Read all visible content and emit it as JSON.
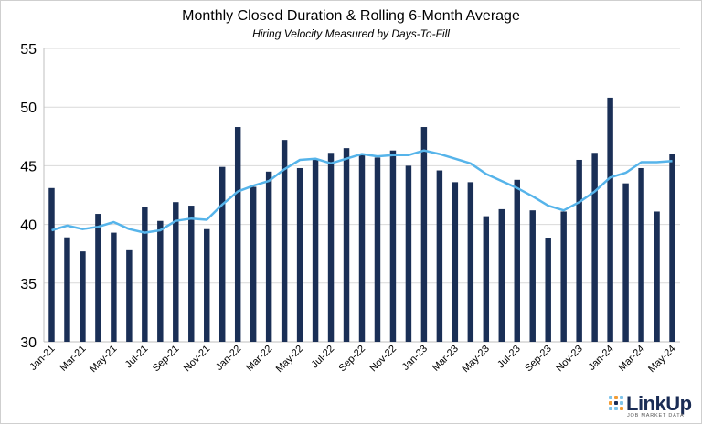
{
  "chart_data": {
    "type": "bar",
    "title": "Monthly Closed Duration & Rolling 6-Month Average",
    "subtitle": "Hiring Velocity Measured by Days-To-Fill",
    "xlabel": "",
    "ylabel": "",
    "ylim": [
      30,
      55
    ],
    "yticks": [
      30,
      35,
      40,
      45,
      50,
      55
    ],
    "grid": true,
    "legend": "none",
    "x": [
      "Jan-21",
      "Feb-21",
      "Mar-21",
      "Apr-21",
      "May-21",
      "Jun-21",
      "Jul-21",
      "Aug-21",
      "Sep-21",
      "Oct-21",
      "Nov-21",
      "Dec-21",
      "Jan-22",
      "Feb-22",
      "Mar-22",
      "Apr-22",
      "May-22",
      "Jun-22",
      "Jul-22",
      "Aug-22",
      "Sep-22",
      "Oct-22",
      "Nov-22",
      "Dec-22",
      "Jan-23",
      "Feb-23",
      "Mar-23",
      "Apr-23",
      "May-23",
      "Jun-23",
      "Jul-23",
      "Aug-23",
      "Sep-23",
      "Oct-23",
      "Nov-23",
      "Dec-23",
      "Jan-24",
      "Feb-24",
      "Mar-24",
      "Apr-24",
      "May-24"
    ],
    "tick_labels": [
      "Jan-21",
      "Mar-21",
      "May-21",
      "Jul-21",
      "Sep-21",
      "Nov-21",
      "Jan-22",
      "Mar-22",
      "May-22",
      "Jul-22",
      "Sep-22",
      "Nov-22",
      "Jan-23",
      "Mar-23",
      "May-23",
      "Jul-23",
      "Sep-23",
      "Nov-23",
      "Jan-24",
      "Mar-24",
      "May-24"
    ],
    "series": [
      {
        "type": "bar",
        "color": "#1a2f56",
        "values": [
          43.1,
          38.9,
          37.7,
          40.9,
          39.3,
          37.8,
          41.5,
          40.3,
          41.9,
          41.6,
          39.6,
          44.9,
          48.3,
          43.2,
          44.5,
          47.2,
          44.8,
          45.5,
          46.1,
          46.5,
          45.9,
          45.7,
          46.3,
          45.0,
          48.3,
          44.6,
          43.6,
          43.6,
          40.7,
          41.3,
          43.8,
          41.2,
          38.8,
          41.1,
          45.5,
          46.1,
          50.8,
          43.5,
          44.8,
          41.1,
          46.0
        ]
      },
      {
        "type": "line",
        "color": "#56b4ea",
        "values": [
          39.5,
          39.9,
          39.6,
          39.8,
          40.2,
          39.6,
          39.3,
          39.5,
          40.3,
          40.5,
          40.4,
          41.7,
          42.8,
          43.3,
          43.7,
          44.7,
          45.5,
          45.6,
          45.2,
          45.6,
          46.0,
          45.8,
          45.9,
          45.9,
          46.3,
          46.0,
          45.6,
          45.2,
          44.3,
          43.7,
          43.1,
          42.4,
          41.6,
          41.2,
          41.9,
          42.8,
          44.0,
          44.4,
          45.3,
          45.3,
          45.4
        ]
      }
    ]
  },
  "logo": {
    "name": "LinkUp",
    "tagline": "JOB MARKET DATA"
  }
}
